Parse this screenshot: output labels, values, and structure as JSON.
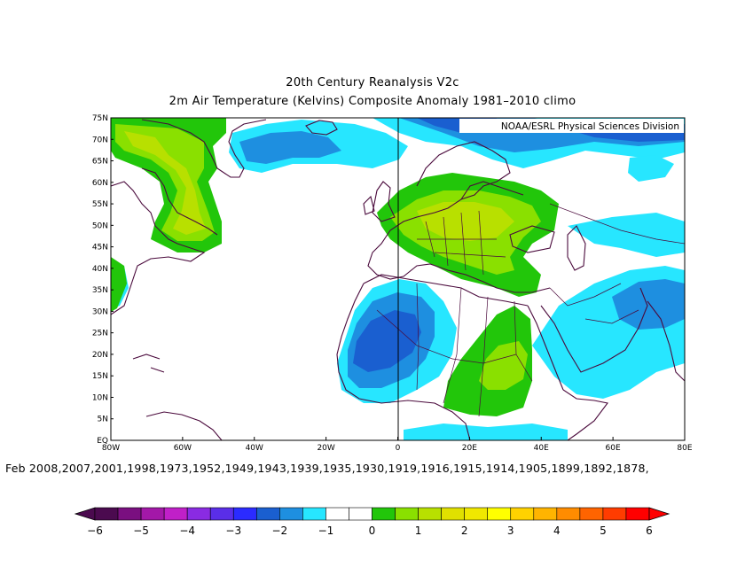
{
  "header": {
    "title": "20th Century Reanalysis V2c",
    "subtitle": "2m Air Temperature (Kelvins) Composite Anomaly 1981–2010 climo"
  },
  "credit": "NOAA/ESRL Physical Sciences Division",
  "axes": {
    "lat_labels": [
      "75N",
      "70N",
      "65N",
      "60N",
      "55N",
      "50N",
      "45N",
      "40N",
      "35N",
      "30N",
      "25N",
      "20N",
      "15N",
      "10N",
      "5N",
      "EQ"
    ],
    "lon_labels": [
      "80W",
      "60W",
      "40W",
      "20W",
      "0",
      "20E",
      "40E",
      "60E",
      "80E"
    ]
  },
  "dates_line": "Feb 2008,2007,2001,1998,1973,1952,1949,1943,1939,1935,1930,1919,1916,1915,1914,1905,1899,1892,1878,",
  "colorbar": {
    "labels": [
      "−6",
      "−5",
      "−4",
      "−3",
      "−2",
      "−1",
      "0",
      "1",
      "2",
      "3",
      "4",
      "5",
      "6"
    ],
    "colors": [
      "#4b0a4f",
      "#7a0f80",
      "#a318a8",
      "#c020c8",
      "#8a2be2",
      "#5a2ee8",
      "#2b2bff",
      "#1a5fd0",
      "#1e8fe0",
      "#27e6ff",
      "#ffffff",
      "#ffffff",
      "#22c60a",
      "#8ae000",
      "#b8e000",
      "#e0e000",
      "#f0e800",
      "#ffff00",
      "#ffd200",
      "#ffb400",
      "#ff8c00",
      "#ff6400",
      "#ff3c00",
      "#ff0000"
    ]
  },
  "map": {
    "region": "Europe, North Africa, North Atlantic",
    "anomaly_colors": {
      "neg1": "#27e6ff",
      "neg2": "#1e8fe0",
      "neg3": "#1a5fd0",
      "pos1": "#22c60a",
      "pos2": "#8ae000",
      "pos3": "#b8e000"
    }
  }
}
